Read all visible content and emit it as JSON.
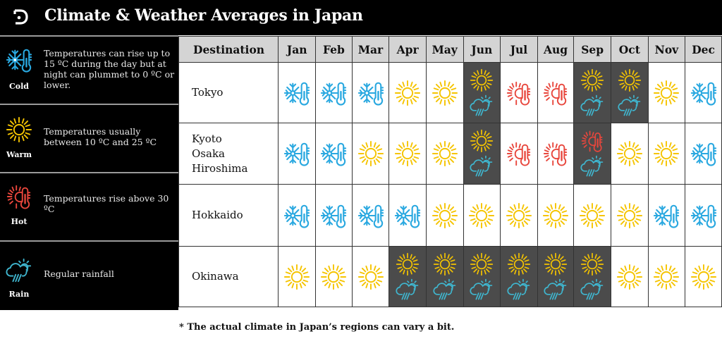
{
  "header": {
    "logo": "D-logo-icon",
    "title": "Climate & Weather Averages in Japan"
  },
  "legend": [
    {
      "key": "cold",
      "label": "Cold",
      "icon": "snowflake-thermometer-icon",
      "color": "#29a8e0",
      "description": "Temperatures can rise up to 15 ºC during the day but at night can plummet to 0 ºC or lower."
    },
    {
      "key": "warm",
      "label": "Warm",
      "icon": "sun-icon",
      "color": "#f5c400",
      "description": "Temperatures usually between 10 ºC and 25 ºC"
    },
    {
      "key": "hot",
      "label": "Hot",
      "icon": "sun-thermometer-icon",
      "color": "#e8463c",
      "description": "Temperatures rise above 30 ºC"
    },
    {
      "key": "rain",
      "label": "Rain",
      "icon": "cloud-rain-sun-icon",
      "color": "#3fb6cf",
      "description": "Regular rainfall"
    }
  ],
  "table": {
    "header_destination": "Destination",
    "months": [
      "Jan",
      "Feb",
      "Mar",
      "Apr",
      "May",
      "Jun",
      "Jul",
      "Aug",
      "Sep",
      "Oct",
      "Nov",
      "Dec"
    ],
    "rows": [
      {
        "destination": [
          "Tokyo"
        ],
        "cells": [
          [
            "cold"
          ],
          [
            "cold"
          ],
          [
            "cold"
          ],
          [
            "warm"
          ],
          [
            "warm"
          ],
          [
            "warm",
            "rain"
          ],
          [
            "hot"
          ],
          [
            "hot"
          ],
          [
            "warm",
            "rain"
          ],
          [
            "warm",
            "rain"
          ],
          [
            "warm"
          ],
          [
            "cold"
          ]
        ]
      },
      {
        "destination": [
          "Kyoto",
          "Osaka",
          "Hiroshima"
        ],
        "cells": [
          [
            "cold"
          ],
          [
            "cold"
          ],
          [
            "warm"
          ],
          [
            "warm"
          ],
          [
            "warm"
          ],
          [
            "warm",
            "rain"
          ],
          [
            "hot"
          ],
          [
            "hot"
          ],
          [
            "hot",
            "rain"
          ],
          [
            "warm"
          ],
          [
            "warm"
          ],
          [
            "cold"
          ]
        ]
      },
      {
        "destination": [
          "Hokkaido"
        ],
        "cells": [
          [
            "cold"
          ],
          [
            "cold"
          ],
          [
            "cold"
          ],
          [
            "cold"
          ],
          [
            "warm"
          ],
          [
            "warm"
          ],
          [
            "warm"
          ],
          [
            "warm"
          ],
          [
            "warm"
          ],
          [
            "warm"
          ],
          [
            "cold"
          ],
          [
            "cold"
          ]
        ]
      },
      {
        "destination": [
          "Okinawa"
        ],
        "cells": [
          [
            "warm"
          ],
          [
            "warm"
          ],
          [
            "warm"
          ],
          [
            "warm",
            "rain"
          ],
          [
            "warm",
            "rain"
          ],
          [
            "warm",
            "rain"
          ],
          [
            "warm",
            "rain"
          ],
          [
            "warm",
            "rain"
          ],
          [
            "warm",
            "rain"
          ],
          [
            "warm"
          ],
          [
            "warm"
          ],
          [
            "warm"
          ]
        ]
      }
    ]
  },
  "colors": {
    "rain_cell_background": "#4b4b4b",
    "header_background": "#d4d4d4",
    "legend_background": "#000000"
  },
  "footnote": "* The actual climate in Japan’s regions can vary a bit."
}
